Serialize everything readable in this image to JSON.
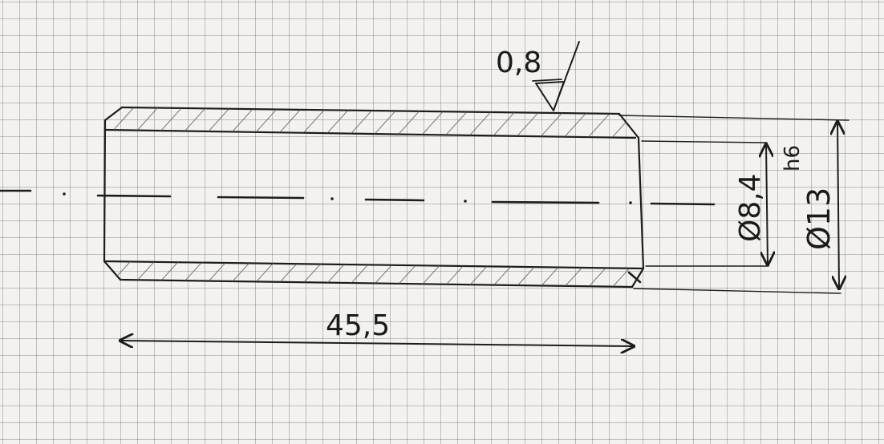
{
  "drawing": {
    "surface_finish": {
      "value": "0,8"
    },
    "dimensions": {
      "length": "45,5",
      "inner_diameter": "Ø8,4",
      "inner_tolerance": "h6",
      "outer_diameter": "Ø13"
    },
    "colors": {
      "paper": "#f3f2ee",
      "grid": "#8a8a8a",
      "ink": "#1d1d1d"
    }
  }
}
